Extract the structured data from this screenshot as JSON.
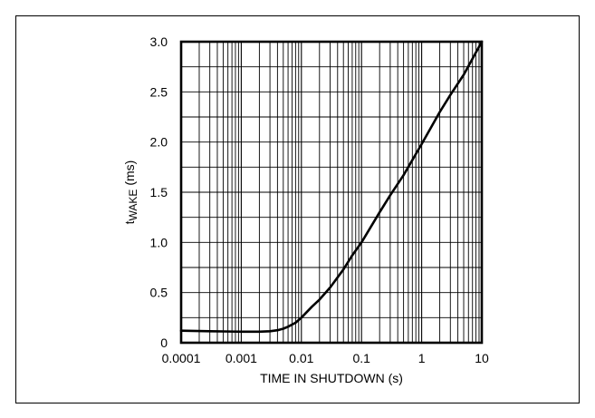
{
  "chart_data": {
    "type": "line",
    "title": "",
    "xlabel": "TIME IN SHUTDOWN (s)",
    "ylabel": {
      "prefix": "t",
      "subscript": "WAKE",
      "suffix": " (ms)"
    },
    "x_scale": "log",
    "xlim": [
      0.0001,
      10
    ],
    "ylim": [
      0,
      3.0
    ],
    "x_ticks": [
      0.0001,
      0.001,
      0.01,
      0.1,
      1,
      10
    ],
    "x_tick_labels": [
      "0.0001",
      "0.001",
      "0.01",
      "0.1",
      "1",
      "10"
    ],
    "y_ticks": [
      0,
      0.5,
      1.0,
      1.5,
      2.0,
      2.5,
      3.0
    ],
    "y_tick_labels": [
      "0",
      "0.5",
      "1.0",
      "1.5",
      "2.0",
      "2.5",
      "3.0"
    ],
    "grid": true,
    "series": [
      {
        "x": [
          0.0001,
          0.0003,
          0.001,
          0.002,
          0.003,
          0.004,
          0.005,
          0.006,
          0.008,
          0.01,
          0.012,
          0.015,
          0.02,
          0.03,
          0.05,
          0.07,
          0.1,
          0.2,
          0.3,
          0.5,
          1,
          2,
          3,
          5,
          10
        ],
        "y": [
          0.12,
          0.115,
          0.11,
          0.11,
          0.115,
          0.125,
          0.14,
          0.16,
          0.2,
          0.25,
          0.3,
          0.36,
          0.43,
          0.55,
          0.73,
          0.87,
          1.0,
          1.3,
          1.47,
          1.67,
          1.98,
          2.3,
          2.47,
          2.67,
          3.0
        ]
      }
    ]
  }
}
